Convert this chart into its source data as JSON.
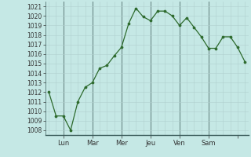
{
  "x_values": [
    0,
    1,
    2,
    3,
    4,
    5,
    6,
    7,
    8,
    9,
    10,
    11,
    12,
    13,
    14,
    15,
    16,
    17,
    18,
    19,
    20,
    21,
    22,
    23,
    24,
    25,
    26,
    27
  ],
  "y_values": [
    1012,
    1009.5,
    1009.5,
    1008,
    1011,
    1012.5,
    1013,
    1014.5,
    1014.8,
    1015.8,
    1016.7,
    1019.2,
    1020.8,
    1019.9,
    1019.5,
    1020.5,
    1020.5,
    1020,
    1019,
    1019.8,
    1018.8,
    1017.8,
    1016.6,
    1016.6,
    1017.8,
    1017.8,
    1016.7,
    1015.2
  ],
  "tick_positions": [
    2,
    6,
    10,
    14,
    18,
    22,
    26
  ],
  "tick_labels": [
    "Lun",
    "Mar",
    "Mer",
    "Jeu",
    "Ven",
    "Sam",
    ""
  ],
  "day_lines": [
    2,
    6,
    10,
    14,
    18,
    22
  ],
  "ylim": [
    1007.5,
    1021.5
  ],
  "yticks": [
    1008,
    1009,
    1010,
    1011,
    1012,
    1013,
    1014,
    1015,
    1016,
    1017,
    1018,
    1019,
    1020,
    1021
  ],
  "xlim": [
    -0.5,
    27.5
  ],
  "line_color": "#2d6a2d",
  "marker_color": "#2d6a2d",
  "bg_color": "#c5e8e5",
  "grid_minor_color": "#b0d0ce",
  "grid_major_color": "#6a8a88",
  "axis_label_color": "#333333",
  "figsize": [
    3.2,
    2.0
  ],
  "dpi": 100
}
